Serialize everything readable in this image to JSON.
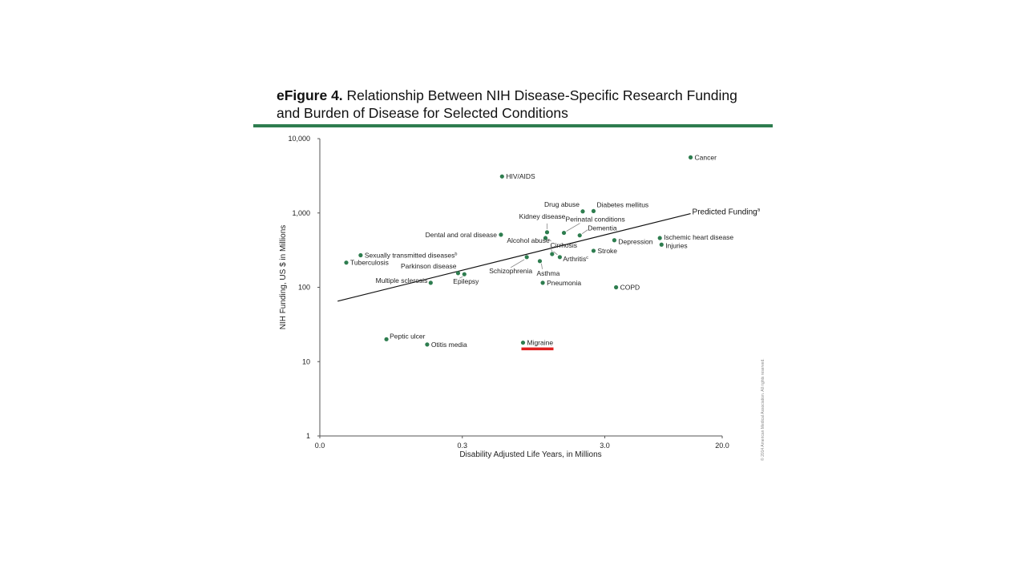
{
  "header": {
    "figure_label": "eFigure 4.",
    "title_line1": "Relationship Between NIH Disease-Specific Research Funding",
    "title_line2": "and Burden of Disease for Selected Conditions"
  },
  "copyright": "© 2014 American Medical Association. All rights reserved.",
  "colors": {
    "point": "#2e7d4f",
    "rule": "#2e7d4f",
    "highlight": "#e02020",
    "trend": "#111111"
  },
  "chart_data": {
    "type": "scatter",
    "xlabel": "Disability Adjusted Life Years, in Millions",
    "ylabel": "NIH Funding, US $ in Millions",
    "x_scale": "log",
    "y_scale": "log",
    "xlim": [
      0.03,
      20
    ],
    "ylim": [
      1,
      10000
    ],
    "x_ticks": [
      {
        "value": 0.03,
        "label": "0.0"
      },
      {
        "value": 0.3,
        "label": "0.3"
      },
      {
        "value": 3.0,
        "label": "3.0"
      },
      {
        "value": 20,
        "label": "20.0"
      }
    ],
    "y_ticks": [
      {
        "value": 1,
        "label": "1"
      },
      {
        "value": 10,
        "label": "10"
      },
      {
        "value": 100,
        "label": "100"
      },
      {
        "value": 1000,
        "label": "1,000"
      },
      {
        "value": 10000,
        "label": "10,000"
      }
    ],
    "trendline": {
      "label": "Predicted Funding",
      "label_superscript": "a",
      "x_start": 0.04,
      "y_start": 65,
      "x_end": 12.0,
      "y_end": 980
    },
    "highlight": "Migraine",
    "points": [
      {
        "name": "Cancer",
        "sup": "",
        "x": 12.0,
        "y": 5600
      },
      {
        "name": "HIV/AIDS",
        "sup": "",
        "x": 0.57,
        "y": 3100
      },
      {
        "name": "Drug abuse",
        "sup": "",
        "x": 2.1,
        "y": 1050
      },
      {
        "name": "Diabetes mellitus",
        "sup": "",
        "x": 2.5,
        "y": 1060
      },
      {
        "name": "Kidney disease",
        "sup": "",
        "x": 1.18,
        "y": 550
      },
      {
        "name": "Perinatal conditions",
        "sup": "",
        "x": 1.55,
        "y": 540
      },
      {
        "name": "Dementia",
        "sup": "",
        "x": 2.0,
        "y": 500
      },
      {
        "name": "Dental and oral disease",
        "sup": "",
        "x": 0.56,
        "y": 510
      },
      {
        "name": "Cirrhosis",
        "sup": "",
        "x": 1.15,
        "y": 460
      },
      {
        "name": "Depression",
        "sup": "",
        "x": 3.5,
        "y": 430
      },
      {
        "name": "Ischemic heart disease",
        "sup": "",
        "x": 7.3,
        "y": 460
      },
      {
        "name": "Injuries",
        "sup": "",
        "x": 7.5,
        "y": 375
      },
      {
        "name": "Alcohol abuse",
        "sup": "",
        "x": 1.28,
        "y": 280
      },
      {
        "name": "Stroke",
        "sup": "",
        "x": 2.5,
        "y": 310
      },
      {
        "name": "Arthritis",
        "sup": "c",
        "x": 1.45,
        "y": 255
      },
      {
        "name": "Schizophrenia",
        "sup": "",
        "x": 0.85,
        "y": 255
      },
      {
        "name": "Asthma",
        "sup": "",
        "x": 1.05,
        "y": 225
      },
      {
        "name": "Sexually transmitted diseases",
        "sup": "b",
        "x": 0.058,
        "y": 270
      },
      {
        "name": "Tuberculosis",
        "sup": "",
        "x": 0.046,
        "y": 215
      },
      {
        "name": "Parkinson disease",
        "sup": "",
        "x": 0.28,
        "y": 155
      },
      {
        "name": "Epilepsy",
        "sup": "",
        "x": 0.31,
        "y": 150
      },
      {
        "name": "Multiple sclerosis",
        "sup": "",
        "x": 0.18,
        "y": 115
      },
      {
        "name": "Pneumonia",
        "sup": "",
        "x": 1.1,
        "y": 115
      },
      {
        "name": "COPD",
        "sup": "",
        "x": 3.6,
        "y": 100
      },
      {
        "name": "Peptic ulcer",
        "sup": "",
        "x": 0.088,
        "y": 20
      },
      {
        "name": "Otitis media",
        "sup": "",
        "x": 0.17,
        "y": 17
      },
      {
        "name": "Migraine",
        "sup": "",
        "x": 0.8,
        "y": 18
      }
    ]
  }
}
